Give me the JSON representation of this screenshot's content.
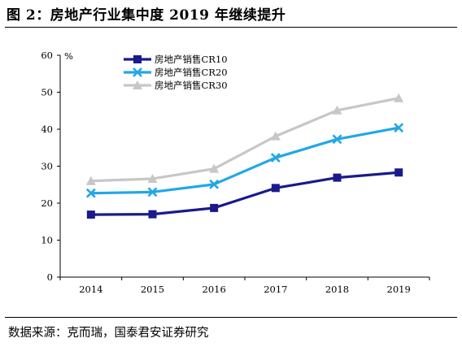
{
  "page": {
    "title": "图 2：房地产行业集中度 2019 年继续提升",
    "source": "数据来源：克而瑞，国泰君安证券研究"
  },
  "chart_data": {
    "type": "line",
    "title": "",
    "xlabel": "",
    "ylabel": "%",
    "x": [
      "2014",
      "2015",
      "2016",
      "2017",
      "2018",
      "2019"
    ],
    "ylim": [
      0,
      60
    ],
    "yticks": [
      0,
      10,
      20,
      30,
      40,
      50,
      60
    ],
    "grid": false,
    "legend_position": "top-left",
    "series": [
      {
        "name": "房地产销售CR10",
        "values": [
          16.9,
          17.0,
          18.7,
          24.1,
          26.9,
          28.3
        ],
        "color": "#1a1a8c",
        "marker": "square"
      },
      {
        "name": "房地产销售CR20",
        "values": [
          22.7,
          23.0,
          25.1,
          32.3,
          37.3,
          40.4
        ],
        "color": "#22a7e6",
        "marker": "x"
      },
      {
        "name": "房地产销售CR30",
        "values": [
          26.0,
          26.6,
          29.3,
          38.1,
          45.1,
          48.4
        ],
        "color": "#c7c7c7",
        "marker": "triangle"
      }
    ]
  }
}
